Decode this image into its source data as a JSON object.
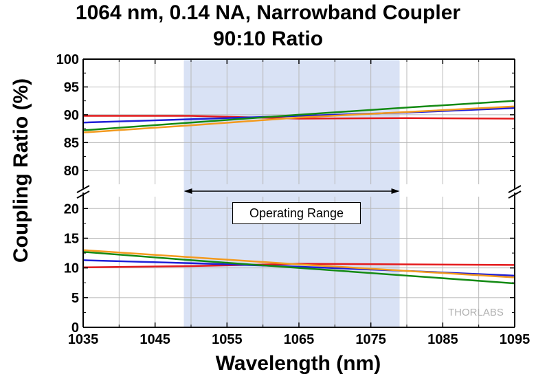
{
  "title_line1": "1064 nm, 0.14 NA, Narrowband Coupler",
  "title_line2": "90:10 Ratio",
  "chart_data": {
    "type": "line",
    "title": "1064 nm, 0.14 NA, Narrowband Coupler 90:10 Ratio",
    "xlabel": "Wavelength (nm)",
    "ylabel": "Coupling Ratio (%)",
    "xlim": [
      1035,
      1095
    ],
    "x_ticks": [
      1035,
      1045,
      1055,
      1065,
      1075,
      1085,
      1095
    ],
    "y_ticks_upper": [
      80,
      85,
      90,
      95,
      100
    ],
    "y_ticks_lower": [
      0,
      5,
      10,
      15,
      20
    ],
    "ylim_upper": [
      77.5,
      100
    ],
    "ylim_lower": [
      0,
      22
    ],
    "broken_axis": true,
    "grid": true,
    "operating_range": {
      "x": [
        1049,
        1079
      ],
      "label": "Operating Range",
      "color": "#d9e2f5"
    },
    "series": [
      {
        "color": "#e41a1c",
        "upper": [
          [
            1035,
            89.8
          ],
          [
            1050,
            89.8
          ],
          [
            1065,
            89.3
          ],
          [
            1080,
            89.4
          ],
          [
            1095,
            89.3
          ]
        ],
        "lower": [
          [
            1035,
            10.1
          ],
          [
            1050,
            10.3
          ],
          [
            1065,
            10.7
          ],
          [
            1080,
            10.6
          ],
          [
            1095,
            10.5
          ]
        ]
      },
      {
        "color": "#1f1fd6",
        "upper": [
          [
            1035,
            88.6
          ],
          [
            1050,
            89.2
          ],
          [
            1065,
            89.8
          ],
          [
            1080,
            90.4
          ],
          [
            1095,
            91.2
          ]
        ],
        "lower": [
          [
            1035,
            11.3
          ],
          [
            1050,
            10.8
          ],
          [
            1065,
            10.2
          ],
          [
            1080,
            9.5
          ],
          [
            1095,
            8.7
          ]
        ]
      },
      {
        "color": "#138a13",
        "upper": [
          [
            1035,
            87.2
          ],
          [
            1050,
            88.6
          ],
          [
            1065,
            90.0
          ],
          [
            1080,
            91.3
          ],
          [
            1095,
            92.5
          ]
        ],
        "lower": [
          [
            1035,
            12.7
          ],
          [
            1050,
            11.3
          ],
          [
            1065,
            10.0
          ],
          [
            1080,
            8.7
          ],
          [
            1095,
            7.4
          ]
        ]
      },
      {
        "color": "#f39a1e",
        "upper": [
          [
            1035,
            86.8
          ],
          [
            1050,
            88.1
          ],
          [
            1065,
            89.5
          ],
          [
            1080,
            90.5
          ],
          [
            1095,
            91.5
          ]
        ],
        "lower": [
          [
            1035,
            13.0
          ],
          [
            1050,
            11.8
          ],
          [
            1065,
            10.6
          ],
          [
            1080,
            9.5
          ],
          [
            1095,
            8.4
          ]
        ]
      }
    ]
  },
  "annotation": "Operating Range",
  "logo": {
    "bold": "THOR",
    "light": "LABS"
  }
}
